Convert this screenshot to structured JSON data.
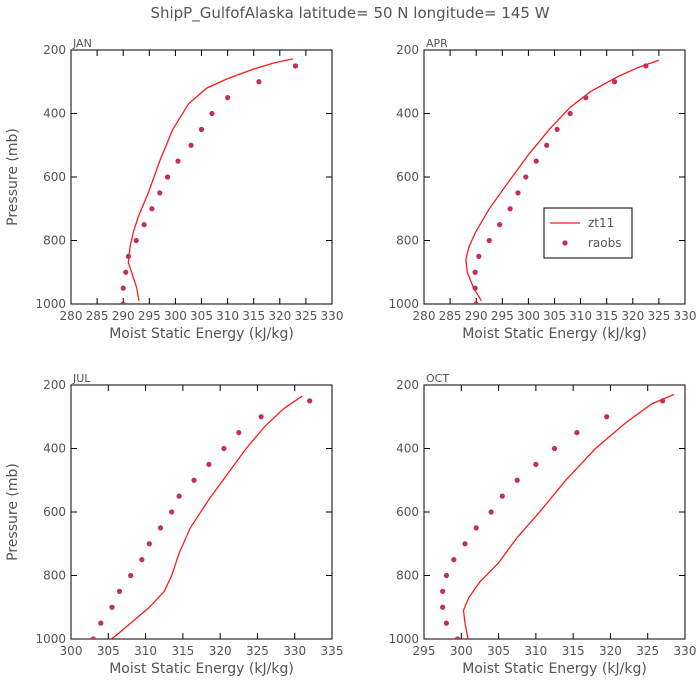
{
  "figure": {
    "title": "ShipP_GulfofAlaska   latitude= 50 N longitude= 145 W"
  },
  "colors": {
    "model_line": "#ff1a1a",
    "obs_points": "#c0305a",
    "text": "#555555",
    "axes": "#000000"
  },
  "legend": {
    "model_label": "zt11",
    "obs_label": "raobs",
    "panel": 1
  },
  "chart_data": [
    {
      "type": "line",
      "panel_label": "JAN",
      "xlabel": "Moist Static Energy (kJ/kg)",
      "ylabel": "Pressure (mb)",
      "xlim": [
        280,
        330
      ],
      "xticks": [
        280,
        285,
        290,
        295,
        300,
        305,
        310,
        315,
        320,
        325,
        330
      ],
      "ylim": [
        1000,
        200
      ],
      "yticks": [
        200,
        400,
        600,
        800,
        1000
      ],
      "grid": false,
      "series": [
        {
          "name": "zt11",
          "kind": "line",
          "points": [
            [
              293,
              990
            ],
            [
              292.6,
              950
            ],
            [
              291.6,
              900
            ],
            [
              291,
              870
            ],
            [
              291.3,
              820
            ],
            [
              292,
              770
            ],
            [
              293,
              720
            ],
            [
              294.8,
              650
            ],
            [
              297,
              550
            ],
            [
              299.5,
              450
            ],
            [
              302.5,
              370
            ],
            [
              306,
              320
            ],
            [
              310,
              290
            ],
            [
              315,
              260
            ],
            [
              319,
              240
            ],
            [
              322.5,
              228
            ]
          ]
        },
        {
          "name": "raobs",
          "kind": "scatter",
          "points": [
            [
              290,
              1000
            ],
            [
              290,
              950
            ],
            [
              290.5,
              900
            ],
            [
              291,
              850
            ],
            [
              292.5,
              800
            ],
            [
              294,
              750
            ],
            [
              295.5,
              700
            ],
            [
              297,
              650
            ],
            [
              298.5,
              600
            ],
            [
              300.5,
              550
            ],
            [
              303,
              500
            ],
            [
              305,
              450
            ],
            [
              307,
              400
            ],
            [
              310,
              350
            ],
            [
              316,
              300
            ],
            [
              323,
              250
            ]
          ]
        }
      ]
    },
    {
      "type": "line",
      "panel_label": "APR",
      "xlabel": "Moist Static Energy (kJ/kg)",
      "ylabel": "",
      "xlim": [
        280,
        330
      ],
      "xticks": [
        280,
        285,
        290,
        295,
        300,
        305,
        310,
        315,
        320,
        325,
        330
      ],
      "ylim": [
        1000,
        200
      ],
      "yticks": [
        200,
        400,
        600,
        800,
        1000
      ],
      "grid": false,
      "series": [
        {
          "name": "zt11",
          "kind": "line",
          "points": [
            [
              291,
              990
            ],
            [
              289.5,
              950
            ],
            [
              288.3,
              900
            ],
            [
              288,
              860
            ],
            [
              288.6,
              820
            ],
            [
              290,
              770
            ],
            [
              292.5,
              700
            ],
            [
              296,
              620
            ],
            [
              300,
              530
            ],
            [
              304,
              450
            ],
            [
              308,
              380
            ],
            [
              312,
              330
            ],
            [
              317,
              285
            ],
            [
              321,
              255
            ],
            [
              325,
              232
            ]
          ]
        },
        {
          "name": "raobs",
          "kind": "scatter",
          "points": [
            [
              290,
              1000
            ],
            [
              289.8,
              950
            ],
            [
              289.8,
              900
            ],
            [
              290.5,
              850
            ],
            [
              292.5,
              800
            ],
            [
              294.5,
              750
            ],
            [
              296.5,
              700
            ],
            [
              298,
              650
            ],
            [
              299.5,
              600
            ],
            [
              301.5,
              550
            ],
            [
              303.5,
              500
            ],
            [
              305.5,
              450
            ],
            [
              308,
              400
            ],
            [
              311,
              350
            ],
            [
              316.5,
              300
            ],
            [
              322.5,
              250
            ]
          ]
        }
      ]
    },
    {
      "type": "line",
      "panel_label": "JUL",
      "xlabel": "Moist Static Energy (kJ/kg)",
      "ylabel": "Pressure (mb)",
      "xlim": [
        300,
        335
      ],
      "xticks": [
        300,
        305,
        310,
        315,
        320,
        325,
        330,
        335
      ],
      "ylim": [
        1000,
        200
      ],
      "yticks": [
        200,
        400,
        600,
        800,
        1000
      ],
      "grid": false,
      "series": [
        {
          "name": "zt11",
          "kind": "line",
          "points": [
            [
              304.5,
              1015
            ],
            [
              306,
              990
            ],
            [
              308,
              950
            ],
            [
              310.5,
              900
            ],
            [
              312.5,
              850
            ],
            [
              313.5,
              800
            ],
            [
              314.5,
              730
            ],
            [
              316,
              650
            ],
            [
              318.5,
              560
            ],
            [
              321,
              480
            ],
            [
              323.5,
              400
            ],
            [
              326,
              330
            ],
            [
              328.5,
              275
            ],
            [
              331,
              235
            ]
          ]
        },
        {
          "name": "raobs",
          "kind": "scatter",
          "points": [
            [
              303,
              1000
            ],
            [
              304,
              950
            ],
            [
              305.5,
              900
            ],
            [
              306.5,
              850
            ],
            [
              308,
              800
            ],
            [
              309.5,
              750
            ],
            [
              310.5,
              700
            ],
            [
              312,
              650
            ],
            [
              313.5,
              600
            ],
            [
              314.5,
              550
            ],
            [
              316.5,
              500
            ],
            [
              318.5,
              450
            ],
            [
              320.5,
              400
            ],
            [
              322.5,
              350
            ],
            [
              325.5,
              300
            ],
            [
              332,
              250
            ]
          ]
        }
      ]
    },
    {
      "type": "line",
      "panel_label": "OCT",
      "xlabel": "Moist Static Energy (kJ/kg)",
      "ylabel": "",
      "xlim": [
        295,
        330
      ],
      "xticks": [
        295,
        300,
        305,
        310,
        315,
        320,
        325,
        330
      ],
      "ylim": [
        1000,
        200
      ],
      "yticks": [
        200,
        400,
        600,
        800,
        1000
      ],
      "grid": false,
      "series": [
        {
          "name": "zt11",
          "kind": "line",
          "points": [
            [
              301,
              1010
            ],
            [
              300.5,
              950
            ],
            [
              300.3,
              910
            ],
            [
              301,
              870
            ],
            [
              302.5,
              820
            ],
            [
              305,
              760
            ],
            [
              307.5,
              680
            ],
            [
              310.5,
              600
            ],
            [
              314,
              500
            ],
            [
              318,
              400
            ],
            [
              322,
              320
            ],
            [
              325.5,
              260
            ],
            [
              328.5,
              230
            ]
          ]
        },
        {
          "name": "raobs",
          "kind": "scatter",
          "points": [
            [
              299.5,
              1000
            ],
            [
              298,
              950
            ],
            [
              297.5,
              900
            ],
            [
              297.5,
              850
            ],
            [
              298,
              800
            ],
            [
              299,
              750
            ],
            [
              300.5,
              700
            ],
            [
              302,
              650
            ],
            [
              304,
              600
            ],
            [
              305.5,
              550
            ],
            [
              307.5,
              500
            ],
            [
              310,
              450
            ],
            [
              312.5,
              400
            ],
            [
              315.5,
              350
            ],
            [
              319.5,
              300
            ],
            [
              327,
              250
            ]
          ]
        }
      ]
    }
  ]
}
